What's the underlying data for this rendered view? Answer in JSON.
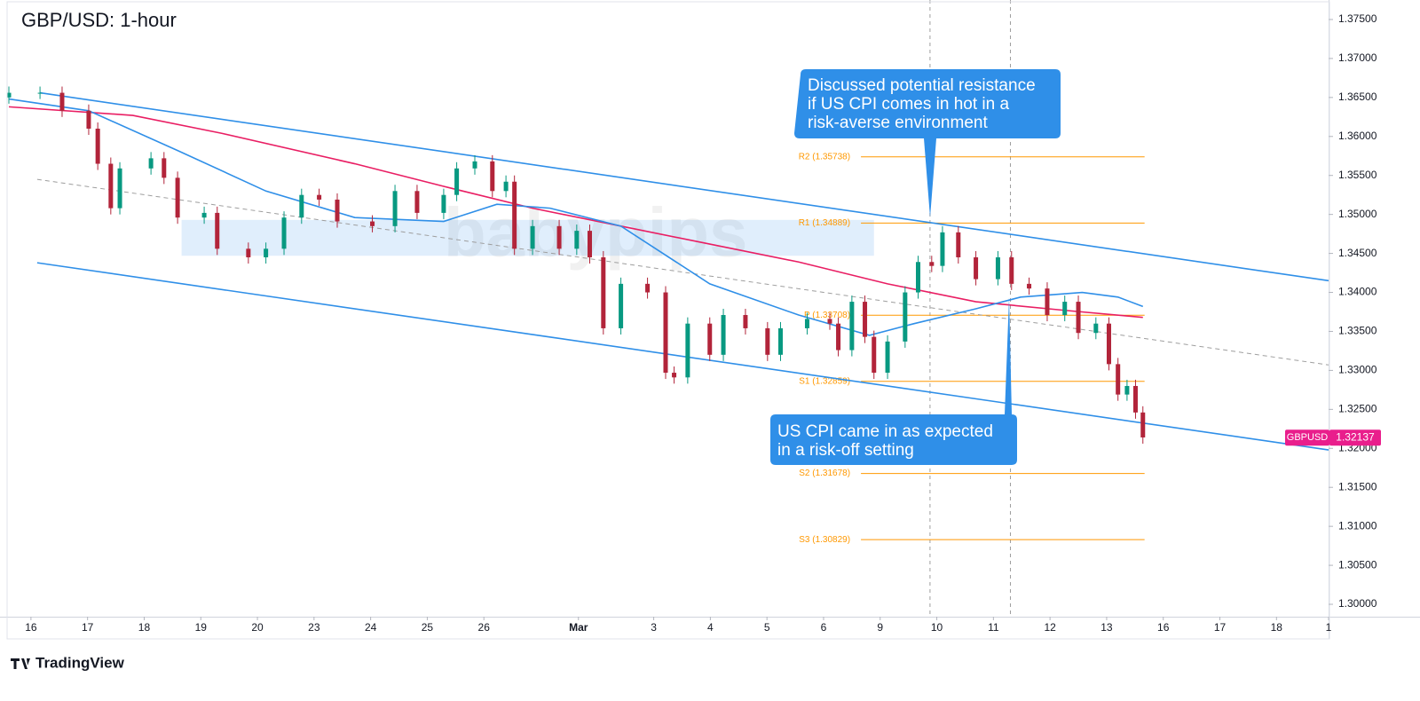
{
  "chart_data": {
    "type": "candlestick",
    "title": "GBP/USD: 1-hour",
    "watermark": "babypips",
    "brand": "TradingView",
    "xlim": [
      -0.39,
      22.92
    ],
    "ylim": [
      1.29841,
      1.3775
    ],
    "xticks": [
      {
        "value": 0,
        "label": "16"
      },
      {
        "value": 1,
        "label": "17"
      },
      {
        "value": 2,
        "label": "18"
      },
      {
        "value": 3,
        "label": "19"
      },
      {
        "value": 4,
        "label": "20"
      },
      {
        "value": 5,
        "label": "23"
      },
      {
        "value": 6,
        "label": "24"
      },
      {
        "value": 7,
        "label": "25"
      },
      {
        "value": 8,
        "label": "26"
      },
      {
        "value": 9.67,
        "label": "Mar"
      },
      {
        "value": 11,
        "label": "3"
      },
      {
        "value": 12,
        "label": "4"
      },
      {
        "value": 13,
        "label": "5"
      },
      {
        "value": 14,
        "label": "6"
      },
      {
        "value": 15,
        "label": "9"
      },
      {
        "value": 16,
        "label": "10"
      },
      {
        "value": 17,
        "label": "11"
      },
      {
        "value": 18,
        "label": "12"
      },
      {
        "value": 19,
        "label": "13"
      },
      {
        "value": 20,
        "label": "16"
      },
      {
        "value": 21,
        "label": "17"
      },
      {
        "value": 22,
        "label": "18"
      },
      {
        "value": 22.92,
        "label": "1"
      }
    ],
    "yticks": [
      {
        "value": 1.3,
        "label": "1.30000"
      },
      {
        "value": 1.305,
        "label": "1.30500"
      },
      {
        "value": 1.31,
        "label": "1.31000"
      },
      {
        "value": 1.315,
        "label": "1.31500"
      },
      {
        "value": 1.32,
        "label": "1.32000"
      },
      {
        "value": 1.325,
        "label": "1.32500"
      },
      {
        "value": 1.33,
        "label": "1.33000"
      },
      {
        "value": 1.335,
        "label": "1.33500"
      },
      {
        "value": 1.34,
        "label": "1.34000"
      },
      {
        "value": 1.345,
        "label": "1.34500"
      },
      {
        "value": 1.35,
        "label": "1.35000"
      },
      {
        "value": 1.355,
        "label": "1.35500"
      },
      {
        "value": 1.36,
        "label": "1.36000"
      },
      {
        "value": 1.365,
        "label": "1.36500"
      },
      {
        "value": 1.37,
        "label": "1.37000"
      },
      {
        "value": 1.375,
        "label": "1.37500"
      }
    ],
    "up_color": "#089981",
    "down_color": "#b2243a",
    "x": [
      -0.39,
      0.16,
      0.55,
      1.02,
      1.18,
      1.41,
      1.57,
      2.12,
      2.35,
      2.59,
      3.06,
      3.29,
      3.84,
      4.15,
      4.47,
      4.78,
      5.09,
      5.41,
      6.03,
      6.43,
      6.82,
      7.29,
      7.52,
      7.84,
      8.15,
      8.39,
      8.54,
      8.86,
      9.33,
      9.64,
      9.87,
      10.11,
      10.42,
      10.89,
      11.21,
      11.36,
      11.6,
      11.99,
      12.23,
      12.62,
      13.01,
      13.24,
      13.71,
      14.11,
      14.26,
      14.5,
      14.73,
      14.89,
      15.13,
      15.44,
      15.67,
      15.91,
      16.1,
      16.38,
      16.69,
      17.08,
      17.32,
      17.63,
      17.95,
      18.26,
      18.5,
      18.81,
      19.04,
      19.2,
      19.36,
      19.51,
      19.64
    ],
    "open": [
      1.365,
      1.3656,
      1.3656,
      1.3633,
      1.361,
      1.3565,
      1.3508,
      1.3559,
      1.3572,
      1.3547,
      1.3496,
      1.3502,
      1.3456,
      1.3445,
      1.3456,
      1.3496,
      1.3525,
      1.3519,
      1.3491,
      1.3485,
      1.353,
      1.3502,
      1.3525,
      1.3559,
      1.3568,
      1.353,
      1.3542,
      1.3456,
      1.3485,
      1.3456,
      1.3479,
      1.3445,
      1.3354,
      1.3411,
      1.34,
      1.3297,
      1.3291,
      1.336,
      1.332,
      1.3371,
      1.3354,
      1.332,
      1.3354,
      1.3366,
      1.336,
      1.3326,
      1.3388,
      1.3343,
      1.3297,
      1.3337,
      1.34,
      1.3439,
      1.3434,
      1.3477,
      1.3445,
      1.3417,
      1.3445,
      1.3411,
      1.3405,
      1.3371,
      1.3388,
      1.3348,
      1.336,
      1.3308,
      1.3269,
      1.328,
      1.3246
    ],
    "high": [
      1.3664,
      1.3664,
      1.3664,
      1.3641,
      1.3618,
      1.3573,
      1.3567,
      1.358,
      1.358,
      1.3555,
      1.351,
      1.351,
      1.3464,
      1.3464,
      1.3504,
      1.3533,
      1.3533,
      1.3527,
      1.3499,
      1.3538,
      1.3538,
      1.3533,
      1.3567,
      1.3576,
      1.3576,
      1.355,
      1.355,
      1.3493,
      1.3493,
      1.3487,
      1.3487,
      1.3453,
      1.3419,
      1.3419,
      1.3408,
      1.3305,
      1.3368,
      1.3368,
      1.3379,
      1.3379,
      1.3362,
      1.3362,
      1.3374,
      1.3374,
      1.3368,
      1.3396,
      1.3396,
      1.3351,
      1.3345,
      1.3408,
      1.3447,
      1.3447,
      1.3485,
      1.3485,
      1.3453,
      1.3453,
      1.3453,
      1.3419,
      1.3413,
      1.3396,
      1.3396,
      1.3368,
      1.3368,
      1.3316,
      1.3288,
      1.3288,
      1.3254
    ],
    "low": [
      1.3642,
      1.3648,
      1.3625,
      1.3602,
      1.3557,
      1.35,
      1.35,
      1.3551,
      1.3539,
      1.3488,
      1.3488,
      1.3448,
      1.3437,
      1.3437,
      1.3448,
      1.3488,
      1.3511,
      1.3483,
      1.3477,
      1.3477,
      1.3494,
      1.3494,
      1.3517,
      1.3551,
      1.3522,
      1.3522,
      1.3448,
      1.3448,
      1.3448,
      1.3448,
      1.3437,
      1.3346,
      1.3346,
      1.3392,
      1.3289,
      1.3283,
      1.3283,
      1.3312,
      1.3312,
      1.3346,
      1.3312,
      1.3312,
      1.3346,
      1.3352,
      1.3318,
      1.3318,
      1.3335,
      1.3289,
      1.3289,
      1.3329,
      1.3392,
      1.3426,
      1.3426,
      1.3437,
      1.3409,
      1.3409,
      1.3403,
      1.3397,
      1.3363,
      1.3363,
      1.334,
      1.334,
      1.33,
      1.3261,
      1.3261,
      1.3238,
      1.3206
    ],
    "close": [
      1.3656,
      1.3656,
      1.3633,
      1.361,
      1.3565,
      1.3508,
      1.3559,
      1.3572,
      1.3547,
      1.3496,
      1.3502,
      1.3456,
      1.3445,
      1.3456,
      1.3496,
      1.3525,
      1.3519,
      1.3491,
      1.3485,
      1.353,
      1.3502,
      1.3525,
      1.3559,
      1.3568,
      1.353,
      1.3542,
      1.3456,
      1.3485,
      1.3456,
      1.3479,
      1.3445,
      1.3354,
      1.3411,
      1.34,
      1.3297,
      1.3291,
      1.336,
      1.332,
      1.3371,
      1.3354,
      1.332,
      1.3354,
      1.3366,
      1.336,
      1.3326,
      1.3388,
      1.3343,
      1.3297,
      1.3337,
      1.34,
      1.3439,
      1.3434,
      1.3477,
      1.3445,
      1.3417,
      1.3445,
      1.3411,
      1.3405,
      1.3371,
      1.3388,
      1.3348,
      1.336,
      1.3308,
      1.3269,
      1.328,
      1.3246,
      1.3214
    ],
    "moving_averages": [
      {
        "color": "#e91e63",
        "x": [
          -0.39,
          1.8,
          3.37,
          5.72,
          7.29,
          8.86,
          10.42,
          11.99,
          13.56,
          15.13,
          16.69,
          18.26,
          19.64
        ],
        "values": [
          1.3638,
          1.3627,
          1.3604,
          1.3565,
          1.3536,
          1.3508,
          1.3485,
          1.3462,
          1.3439,
          1.3411,
          1.3388,
          1.3377,
          1.3368
        ]
      },
      {
        "color": "#2f8fe8",
        "x": [
          -0.39,
          1.02,
          2.59,
          4.15,
          5.72,
          7.29,
          8.23,
          9.17,
          10.42,
          11.99,
          13.56,
          14.81,
          15.6,
          16.69,
          17.48,
          18.57,
          19.2,
          19.64
        ],
        "values": [
          1.3648,
          1.3633,
          1.3582,
          1.353,
          1.3496,
          1.3491,
          1.3513,
          1.3508,
          1.3485,
          1.3411,
          1.3371,
          1.3345,
          1.336,
          1.3379,
          1.3394,
          1.34,
          1.3394,
          1.3382
        ]
      }
    ],
    "trendlines": [
      {
        "color": "#2f8fe8",
        "dashed": false,
        "x": [
          0.16,
          22.92
        ],
        "values": [
          1.3656,
          1.3415
        ]
      },
      {
        "color": "#2f8fe8",
        "dashed": false,
        "x": [
          0.11,
          22.92
        ],
        "values": [
          1.3438,
          1.3198
        ]
      },
      {
        "color": "#9e9e9e",
        "dashed": true,
        "x": [
          0.11,
          22.92
        ],
        "values": [
          1.3545,
          1.3307
        ]
      }
    ],
    "zone": {
      "color": "#2f8fe8",
      "x": [
        2.66,
        14.89
      ],
      "values": [
        1.3447,
        1.3493
      ]
    },
    "event_lines": [
      15.88,
      17.3
    ],
    "pivot_color": "#ff9800",
    "pivot_x": [
      14.66,
      19.67
    ],
    "pivots": [
      {
        "label": "R2 (1.35738)",
        "value": 1.35738
      },
      {
        "label": "R1 (1.34889)",
        "value": 1.34889
      },
      {
        "label": "P (1.33708)",
        "value": 1.33708
      },
      {
        "label": "S1 (1.32859)",
        "value": 1.32859
      },
      {
        "label": "S2 (1.31678)",
        "value": 1.31678
      },
      {
        "label": "S3 (1.30829)",
        "value": 1.30829
      }
    ],
    "last_price": {
      "symbol": "GBPUSD",
      "value": 1.32137,
      "color": "#e91e8c"
    },
    "annotations": [
      {
        "lines": [
          "Discussed potential resistance",
          "if US CPI comes in hot in a",
          "risk-averse environment"
        ]
      },
      {
        "lines": [
          "US CPI came in as expected",
          "in a risk-off setting"
        ]
      }
    ]
  }
}
